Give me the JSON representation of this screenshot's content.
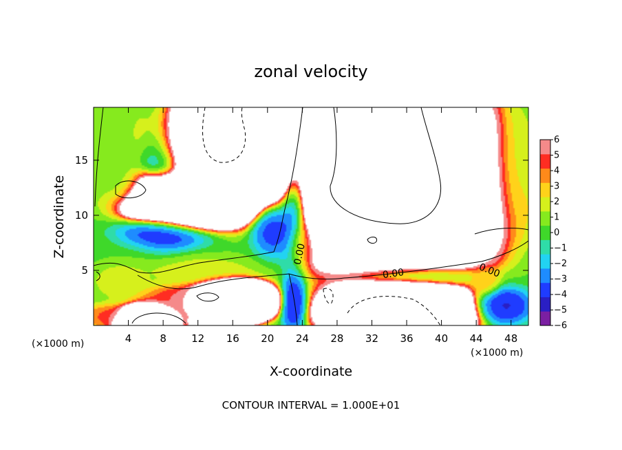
{
  "chart_data": {
    "type": "heatmap",
    "title": "zonal velocity",
    "xlabel": "X-coordinate",
    "ylabel": "Z-coordinate",
    "x_unit_label": "(×1000 m)",
    "x_ticks": [
      4,
      8,
      12,
      16,
      20,
      24,
      28,
      32,
      36,
      40,
      44,
      48
    ],
    "y_ticks": [
      5,
      10,
      15
    ],
    "xlim": [
      0,
      50
    ],
    "ylim": [
      0,
      19.8
    ],
    "colorbar": {
      "ticks": [
        6,
        5,
        4,
        3,
        2,
        1,
        0,
        -1,
        -2,
        -3,
        -4,
        -5,
        -6
      ],
      "range": [
        -6,
        6
      ],
      "saturation_color": "#ffffff",
      "colors": [
        "#7b1fa2",
        "#2a1fc4",
        "#1f3cff",
        "#1e8cff",
        "#22d3f2",
        "#2fdca8",
        "#3fd82a",
        "#86ea1e",
        "#d6f01c",
        "#ffd21a",
        "#ff8a1a",
        "#ff2d22",
        "#f58a8a"
      ]
    },
    "contour_label_value": "0.00",
    "footer": "CONTOUR INTERVAL = 1.000E+01",
    "features": [
      {
        "x": 11.0,
        "z": 11.5,
        "value": 99,
        "sx": 5.5,
        "sz": 2.0
      },
      {
        "x": 17.0,
        "z": 16.5,
        "value": 99,
        "sx": 7.0,
        "sz": 4.0
      },
      {
        "x": 22.0,
        "z": 20.0,
        "value": 99,
        "sx": 3.0,
        "sz": 2.0
      },
      {
        "x": 35.0,
        "z": 13.0,
        "value": 99,
        "sx": 8.5,
        "sz": 6.5
      },
      {
        "x": 35.0,
        "z": 1.3,
        "value": 99,
        "sx": 6.0,
        "sz": 2.0
      },
      {
        "x": 16.0,
        "z": 2.2,
        "value": 99,
        "sx": 3.5,
        "sz": 1.4
      },
      {
        "x": 6.0,
        "z": 0.2,
        "value": 99,
        "sx": 2.5,
        "sz": 1.2
      },
      {
        "x": 13.5,
        "z": 0.3,
        "value": 99,
        "sx": 1.5,
        "sz": 0.6
      },
      {
        "x": 8.5,
        "z": 14.5,
        "value": -6,
        "sx": 3.0,
        "sz": 5.5
      },
      {
        "x": 23.0,
        "z": 13.0,
        "value": -6,
        "sx": 1.6,
        "sz": 7.0
      },
      {
        "x": 8.5,
        "z": 8.7,
        "value": -5,
        "sx": 5.0,
        "sz": 1.4
      },
      {
        "x": 21.0,
        "z": 9.0,
        "value": -5,
        "sx": 2.5,
        "sz": 2.5
      },
      {
        "x": 36.0,
        "z": 4.5,
        "value": -5,
        "sx": 7.0,
        "sz": 1.2
      },
      {
        "x": 47.0,
        "z": 1.8,
        "value": -5,
        "sx": 3.0,
        "sz": 1.5
      },
      {
        "x": 23.0,
        "z": 2.0,
        "value": -5,
        "sx": 1.3,
        "sz": 2.2
      },
      {
        "x": 26.5,
        "z": 13.5,
        "value": 6,
        "sx": 1.8,
        "sz": 6.0
      },
      {
        "x": 45.0,
        "z": 13.0,
        "value": 6,
        "sx": 1.8,
        "sz": 6.5
      },
      {
        "x": 34.0,
        "z": 6.5,
        "value": 6,
        "sx": 7.0,
        "sz": 1.2
      },
      {
        "x": 12.0,
        "z": 2.5,
        "value": 6,
        "sx": 6.0,
        "sz": 1.2
      },
      {
        "x": 2.0,
        "z": 0.8,
        "value": 5,
        "sx": 3.0,
        "sz": 1.0
      },
      {
        "x": 24.0,
        "z": 7.5,
        "value": 3,
        "sx": 1.5,
        "sz": 2.0
      },
      {
        "x": 12.0,
        "z": 5.0,
        "value": 2,
        "sx": 6.0,
        "sz": 1.2
      },
      {
        "x": 3.0,
        "z": 4.0,
        "value": 2,
        "sx": 3.0,
        "sz": 1.5
      },
      {
        "x": 45.0,
        "z": 4.0,
        "value": 3,
        "sx": 1.5,
        "sz": 1.2
      },
      {
        "x": 2.0,
        "z": 16.0,
        "value": 1,
        "sx": 3.0,
        "sz": 5.0
      },
      {
        "x": 48.0,
        "z": 14.0,
        "value": 1,
        "sx": 2.5,
        "sz": 5.0
      },
      {
        "x": 3.5,
        "z": 12.5,
        "value": 0,
        "sx": 2.5,
        "sz": 1.5
      }
    ]
  }
}
